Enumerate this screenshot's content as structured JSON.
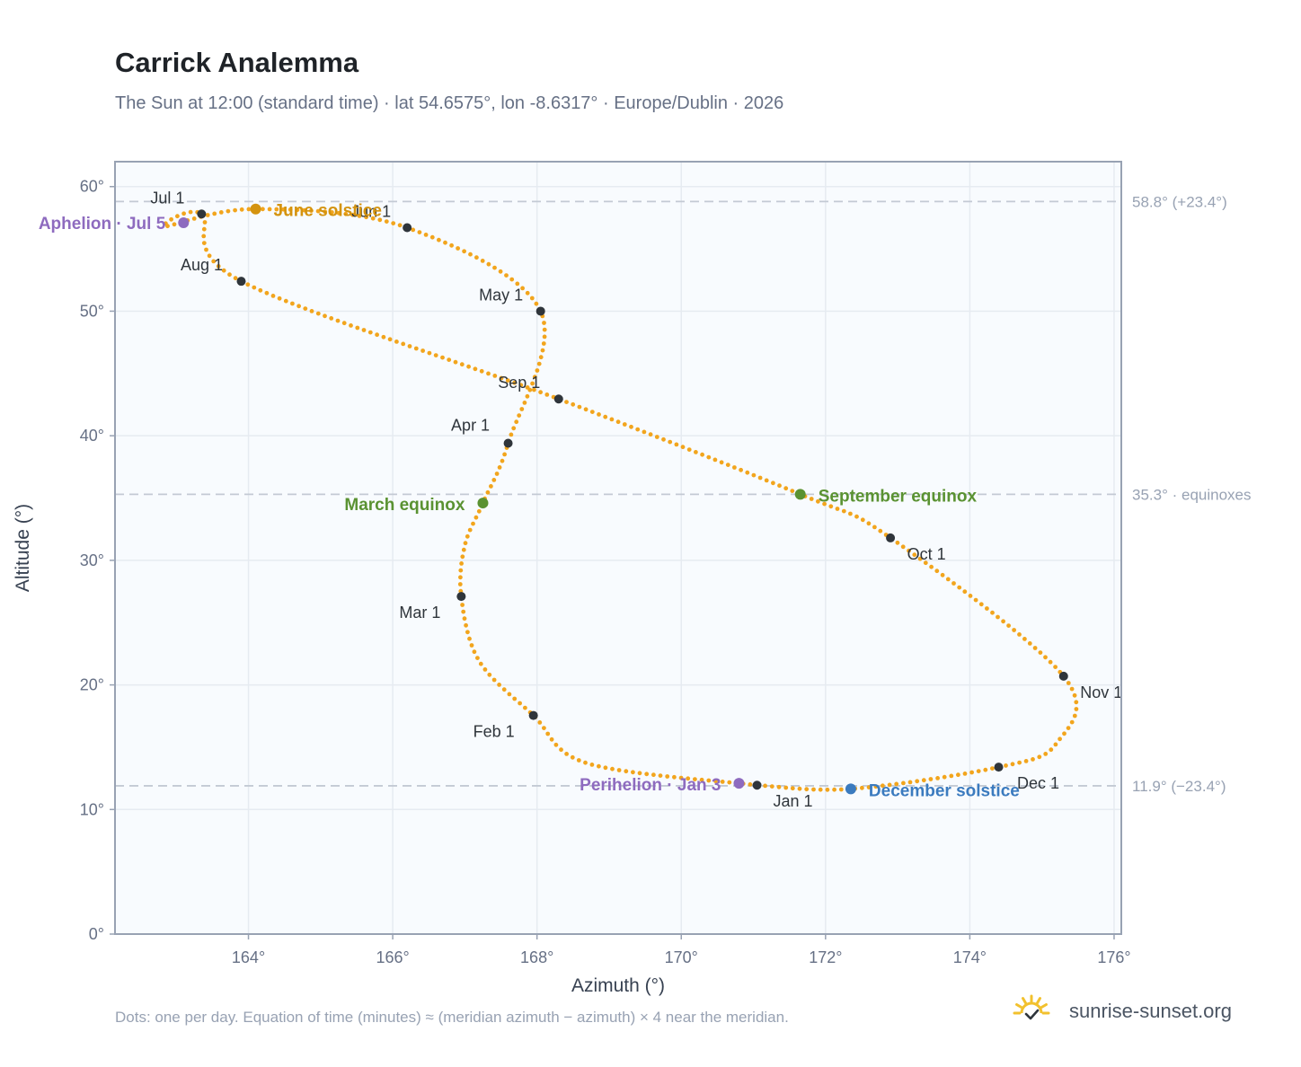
{
  "header": {
    "title": "Carrick Analemma",
    "subtitle": "The Sun at 12:00 (standard time) · lat 54.6575°, lon -8.6317° · Europe/Dublin · 2026"
  },
  "footer": {
    "note": "Dots: one per day. Equation of time (minutes) ≈ (meridian azimuth − azimuth) × 4 near the meridian.",
    "brand": "sunrise-sunset.org",
    "brand_icon": "sun-check-icon"
  },
  "colors": {
    "path": "#f2a51d",
    "month_marker": "#2f353b",
    "aphelion_perihelion": "#8e6bbf",
    "june_solstice": "#d4930f",
    "equinox": "#5a9232",
    "december_solstice": "#3b7bbf",
    "reference_line": "#c3cad4",
    "plot_bg": "#f8fbfe",
    "grid": "#e6ebf1",
    "frame": "#98a2b3",
    "brand_sun": "#f2c12e"
  },
  "chart_data": {
    "type": "scatter",
    "xlabel": "Azimuth (°)",
    "ylabel": "Altitude (°)",
    "xlim": [
      162.15,
      176.1
    ],
    "ylim": [
      0,
      62
    ],
    "x_ticks": [
      164,
      166,
      168,
      170,
      172,
      174,
      176
    ],
    "x_tick_labels": [
      "164°",
      "166°",
      "168°",
      "170°",
      "172°",
      "174°",
      "176°"
    ],
    "y_ticks": [
      0,
      10,
      20,
      30,
      40,
      50,
      60
    ],
    "y_tick_labels": [
      "0°",
      "10°",
      "20°",
      "30°",
      "40°",
      "50°",
      "60°"
    ],
    "grid": true,
    "path_anchors": [
      {
        "x": 171.05,
        "y": 11.95
      },
      {
        "x": 168.7,
        "y": 13.7
      },
      {
        "x": 167.95,
        "y": 17.55
      },
      {
        "x": 167.2,
        "y": 21.9
      },
      {
        "x": 166.95,
        "y": 27.1
      },
      {
        "x": 167.0,
        "y": 31.2
      },
      {
        "x": 167.25,
        "y": 34.6
      },
      {
        "x": 167.6,
        "y": 39.4
      },
      {
        "x": 168.05,
        "y": 50.0
      },
      {
        "x": 166.2,
        "y": 56.7
      },
      {
        "x": 164.1,
        "y": 58.2
      },
      {
        "x": 162.85,
        "y": 56.8
      },
      {
        "x": 163.35,
        "y": 57.8
      },
      {
        "x": 163.9,
        "y": 52.4
      },
      {
        "x": 168.3,
        "y": 42.95
      },
      {
        "x": 171.65,
        "y": 35.3
      },
      {
        "x": 172.9,
        "y": 31.8
      },
      {
        "x": 175.3,
        "y": 20.7
      },
      {
        "x": 175.2,
        "y": 15.3
      },
      {
        "x": 174.4,
        "y": 13.4
      },
      {
        "x": 172.35,
        "y": 11.65
      },
      {
        "x": 171.05,
        "y": 11.95
      }
    ],
    "month_markers": [
      {
        "label": "Jan 1",
        "x": 171.05,
        "y": 11.95
      },
      {
        "label": "Feb 1",
        "x": 167.95,
        "y": 17.55
      },
      {
        "label": "Mar 1",
        "x": 166.95,
        "y": 27.1
      },
      {
        "label": "Apr 1",
        "x": 167.6,
        "y": 39.4
      },
      {
        "label": "May 1",
        "x": 168.05,
        "y": 50.0
      },
      {
        "label": "Jun 1",
        "x": 166.2,
        "y": 56.7
      },
      {
        "label": "Jul 1",
        "x": 163.35,
        "y": 57.8
      },
      {
        "label": "Aug 1",
        "x": 163.9,
        "y": 52.4
      },
      {
        "label": "Sep 1",
        "x": 168.3,
        "y": 42.95
      },
      {
        "label": "Oct 1",
        "x": 172.9,
        "y": 31.8
      },
      {
        "label": "Nov 1",
        "x": 175.3,
        "y": 20.7
      },
      {
        "label": "Dec 1",
        "x": 174.4,
        "y": 13.4
      }
    ],
    "events": [
      {
        "label": "Aphelion · Jul 5",
        "x": 163.1,
        "y": 57.1,
        "kind": "aphelion_perihelion"
      },
      {
        "label": "June solstice",
        "x": 164.1,
        "y": 58.2,
        "kind": "june_solstice"
      },
      {
        "label": "March equinox",
        "x": 167.25,
        "y": 34.6,
        "kind": "equinox"
      },
      {
        "label": "September equinox",
        "x": 171.65,
        "y": 35.3,
        "kind": "equinox"
      },
      {
        "label": "Perihelion · Jan 3",
        "x": 170.8,
        "y": 12.1,
        "kind": "aphelion_perihelion"
      },
      {
        "label": "December solstice",
        "x": 172.35,
        "y": 11.65,
        "kind": "december_solstice"
      }
    ],
    "reference_lines": [
      {
        "y": 58.8,
        "label": "58.8° (+23.4°)"
      },
      {
        "y": 35.3,
        "label": "35.3° · equinoxes"
      },
      {
        "y": 11.9,
        "label": "11.9° (−23.4°)"
      }
    ]
  }
}
